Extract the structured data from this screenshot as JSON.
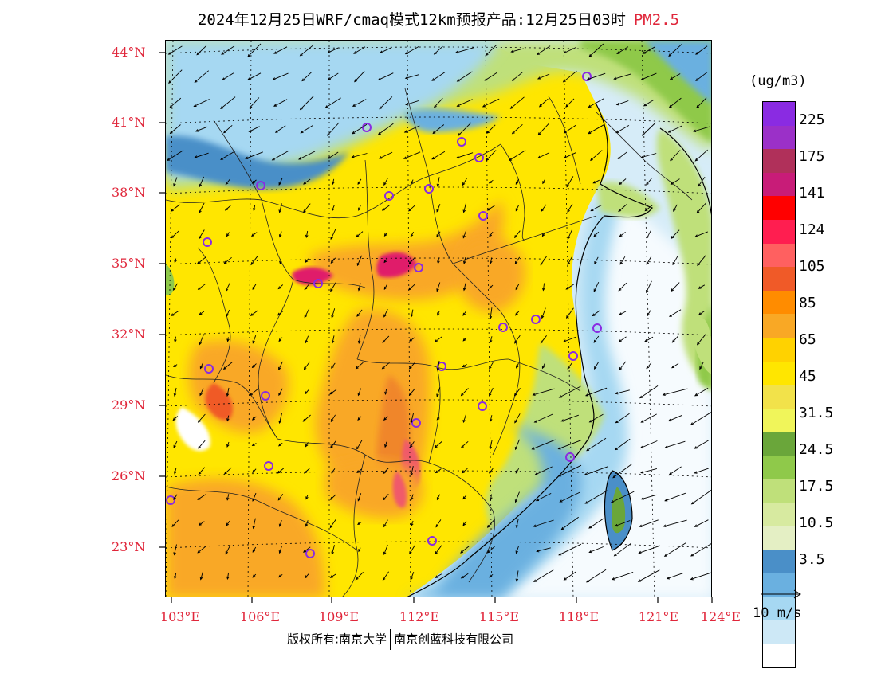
{
  "title": {
    "text": "2024年12月25日WRF/cmaq模式12km预报产品:12月25日03时",
    "pollutant": "PM2.5"
  },
  "axes": {
    "lat_labels": [
      "44°N",
      "41°N",
      "38°N",
      "35°N",
      "32°N",
      "29°N",
      "26°N",
      "23°N"
    ],
    "lon_labels": [
      "103°E",
      "106°E",
      "109°E",
      "112°E",
      "115°E",
      "118°E",
      "121°E",
      "124°E"
    ]
  },
  "legend": {
    "unit": "(ug/m3)",
    "labels": [
      "225",
      "175",
      "141",
      "124",
      "105",
      "85",
      "65",
      "45",
      "31.5",
      "24.5",
      "17.5",
      "10.5",
      "3.5"
    ],
    "colors": [
      "#8a2be2",
      "#9b30c8",
      "#b0305a",
      "#c81c78",
      "#ff0000",
      "#ff1e50",
      "#ff6060",
      "#f05a28",
      "#ff8c00",
      "#f9a825",
      "#ffd200",
      "#ffe600",
      "#f2e24a",
      "#f0f55a",
      "#6aa63a",
      "#8fc94a",
      "#bfe07a",
      "#d7eaa0",
      "#e4efc4",
      "#4a8fc8",
      "#6ab0e0",
      "#a6d8f2",
      "#cde8f6",
      "#ffffff"
    ],
    "wind_ref": "10 m/s"
  },
  "footer": {
    "left": "版权所有:南京大学",
    "right": "南京创蓝科技有限公司"
  }
}
